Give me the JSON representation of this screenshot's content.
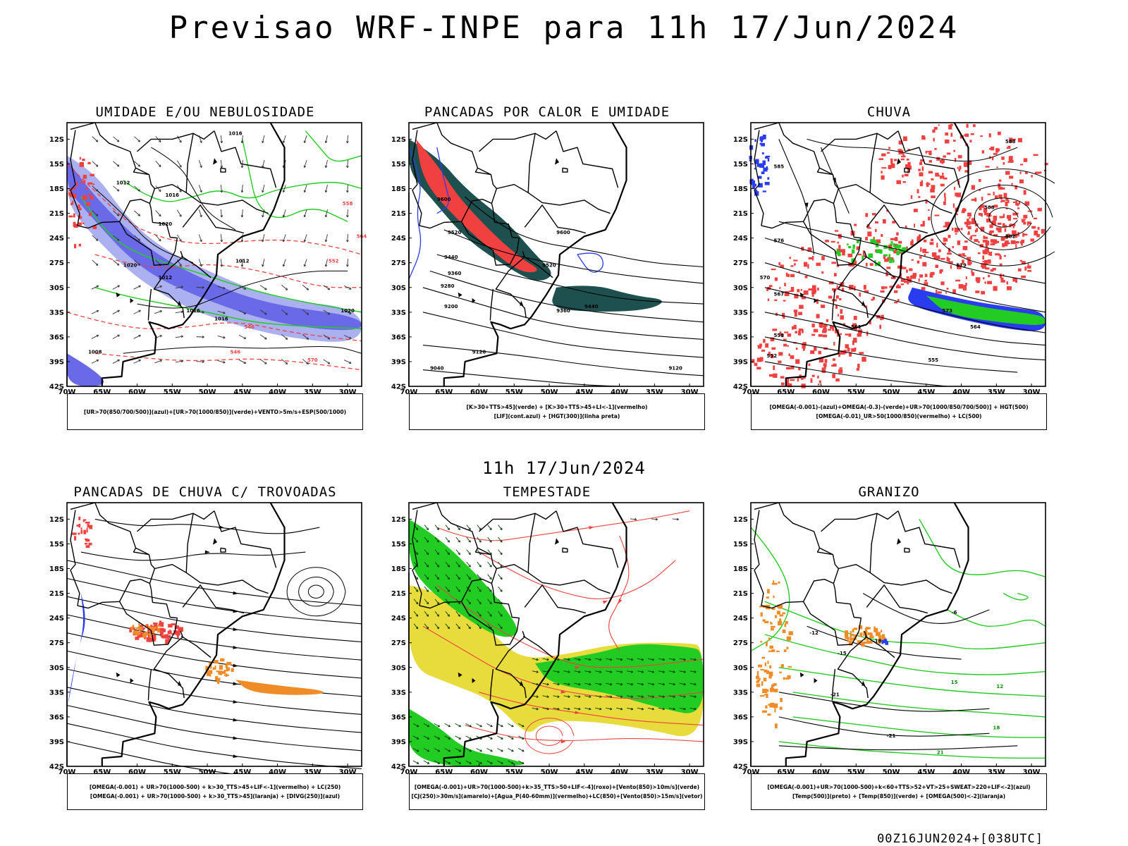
{
  "main_title": "Previsao WRF-INPE  para 11h 17/Jun/2024",
  "mid_title": "11h 17/Jun/2024",
  "footer": "00Z16JUN2024+[038UTC]",
  "axes": {
    "lat_labels": [
      "12S",
      "15S",
      "18S",
      "21S",
      "24S",
      "27S",
      "30S",
      "33S",
      "36S",
      "39S",
      "42S"
    ],
    "lon_labels": [
      "70W",
      "65W",
      "60W",
      "55W",
      "50W",
      "45W",
      "40W",
      "35W",
      "30W"
    ]
  },
  "panels": [
    {
      "title": "UMIDADE E/OU NEBULOSIDADE",
      "legend": [
        "[UR>70(850/700/500)](azul)+[UR>70(1000/850)](verde)+VENTO>5m/s+ESP(500/1000)"
      ],
      "contour_labels": [
        "1016",
        "1012",
        "1016",
        "1020",
        "1020",
        "1012",
        "1016",
        "1016",
        "1020",
        "1012",
        "1008",
        "570",
        "564",
        "558",
        "552",
        "546",
        "546"
      ]
    },
    {
      "title": "PANCADAS POR CALOR E UMIDADE",
      "legend": [
        "[K>30+TTS>45](verde) + [K>30+TTS>45+LI<-1](vermelho)",
        "[LIF](cont.azul) + [HGT(300)](linha preta)"
      ],
      "contour_labels": [
        "9600",
        "9520",
        "9440",
        "9360",
        "9280",
        "9200",
        "9120",
        "9040",
        "9600",
        "9520",
        "9440",
        "9360",
        "9120"
      ]
    },
    {
      "title": "CHUVA",
      "legend": [
        "[OMEGA(-0.001)-(azul)+OMEGA(-0.3)-(verde)+UR>70(1000/850/700/500)] + HGT(500)",
        "[OMEGA(-0.01)_UR>50(1000/850)(vermelho) + LC(500)"
      ],
      "contour_labels": [
        "588",
        "585",
        "582",
        "579",
        "576",
        "573",
        "570",
        "567",
        "564",
        "561",
        "558",
        "555",
        "552",
        "588"
      ]
    },
    {
      "title": "PANCADAS DE CHUVA C/ TROVOADAS",
      "legend": [
        "[OMEGA(-0.001) + UR>70(1000-500) + k>30_TTS>45+LIF<-1](vermelho) + LC(250)",
        "[OMEGA(-0.001) + UR>70(1000-500) + k>30_TTS>45](laranja) + [DIVG(250)](azul)"
      ],
      "contour_labels": []
    },
    {
      "title": "TEMPESTADE",
      "legend": [
        "[OMEGA(-0.001)+UR>70(1000-500)+k>35_TTS>50+LIF<-4](roxo)+[Vento(850)>10m/s](verde)",
        "[CJ(250)>30m/s](amarelo)+[Agua_P(40-60mm)](vermelho)+LC(850)+[Vento(850)>15m/s](vetor)"
      ],
      "contour_labels": []
    },
    {
      "title": "GRANIZO",
      "legend": [
        "[OMEGA(-0.001)+UR>70(1000-500)+k<60+TTS>52+VT>25+SWEAT>220+LIF<-2](azul)",
        "[Temp(500)](preto) + [Temp(850)](verde) + [OMEGA(500)<-2](laranja)"
      ],
      "contour_labels": [
        "-6",
        "-12",
        "-15",
        "-18",
        "-21",
        "-21",
        "12",
        "15",
        "18",
        "21"
      ]
    }
  ],
  "colors": {
    "blue_light": "#aab0f0",
    "blue": "#2a3cf0",
    "blue_fill": "#6a6ae8",
    "green": "#22cc22",
    "red": "#f04040",
    "dark_teal": "#1e5050",
    "orange": "#f08c28",
    "yellow": "#e8dc3c",
    "black": "#000000"
  }
}
